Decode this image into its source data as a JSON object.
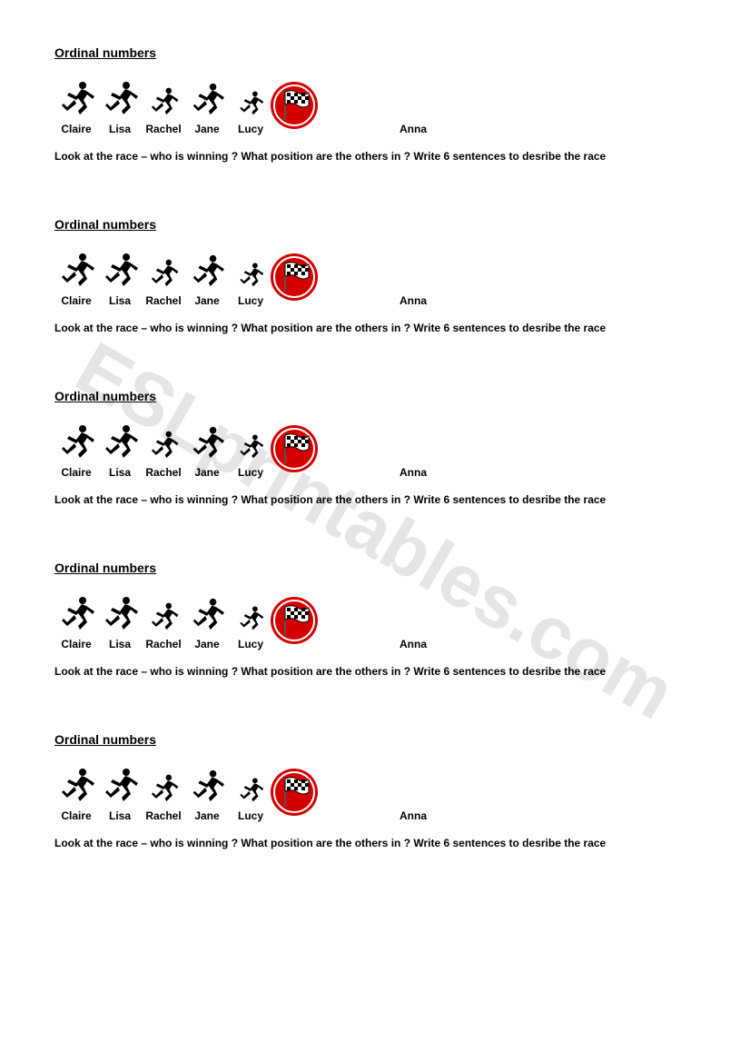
{
  "watermark": {
    "text": "ESLprintables.com",
    "color": "rgba(0,0,0,0.10)",
    "rotation_deg": 30,
    "fontsize": 82
  },
  "title": "Ordinal numbers",
  "instruction": "Look at the race – who is winning ? What position are the others in ? Write 6 sentences to desribe the race",
  "runners": [
    {
      "name": "Claire"
    },
    {
      "name": "Lisa"
    },
    {
      "name": "Rachel"
    },
    {
      "name": "Jane"
    },
    {
      "name": "Lucy"
    }
  ],
  "extra_name": "Anna",
  "flag": {
    "circle_color": "#d40000",
    "inner_border": "#ffffff",
    "flag_body": "#ffffff",
    "flag_pattern": "#000000"
  },
  "runner_figure_color": "#000000",
  "block_count": 5
}
